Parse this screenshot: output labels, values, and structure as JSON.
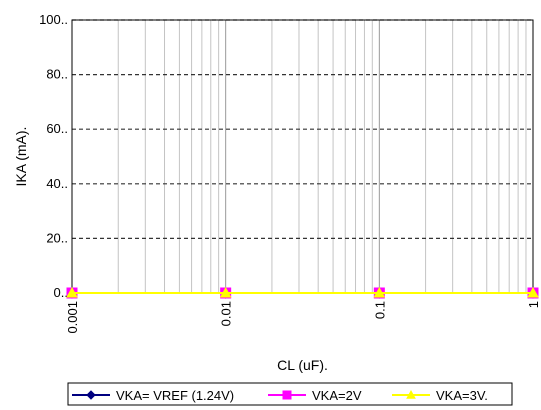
{
  "chart_data": {
    "type": "line",
    "title": "",
    "xlabel": "CL (uF).",
    "ylabel": "IKA (mA).",
    "x_scale": "log",
    "xlim": [
      0.001,
      1
    ],
    "ylim": [
      0,
      100
    ],
    "x_ticks": [
      0.001,
      0.01,
      0.1,
      1
    ],
    "x_tick_labels": [
      "0.001",
      "0.01",
      "0.1",
      "1"
    ],
    "y_ticks": [
      0,
      20,
      40,
      60,
      80,
      100
    ],
    "y_tick_labels": [
      "0..",
      "20..",
      "40..",
      "60..",
      "80..",
      "100.."
    ],
    "grid": {
      "vertical_minor": true,
      "horizontal_major": true
    },
    "legend_position": "bottom",
    "series": [
      {
        "name": "VKA= VREF (1.24V)",
        "color": "#000080",
        "marker": "diamond",
        "x": [
          0.001,
          0.01,
          0.1,
          1
        ],
        "y": [
          0,
          0,
          0,
          0
        ]
      },
      {
        "name": "VKA=2V",
        "color": "#ff00ff",
        "marker": "square",
        "x": [
          0.001,
          0.01,
          0.1,
          1
        ],
        "y": [
          0,
          0,
          0,
          0
        ]
      },
      {
        "name": "VKA=3V.",
        "color": "#ffff00",
        "marker": "triangle",
        "x": [
          0.001,
          0.01,
          0.1,
          1
        ],
        "y": [
          0,
          0,
          0,
          0
        ]
      }
    ]
  }
}
